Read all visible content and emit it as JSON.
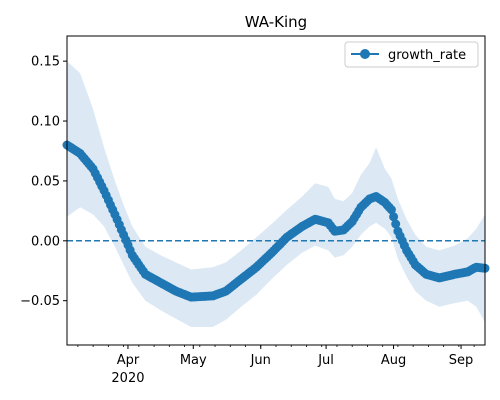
{
  "chart_data": {
    "type": "line",
    "title": "WA-King",
    "xlabel": "",
    "ylabel": "",
    "x_range": [
      "2020-03-04",
      "2020-09-12"
    ],
    "ylim": [
      -0.087,
      0.171
    ],
    "y_ticks": [
      -0.05,
      0.0,
      0.05,
      0.1,
      0.15
    ],
    "y_tick_labels": [
      "−0.05",
      "0.00",
      "0.05",
      "0.10",
      "0.15"
    ],
    "x_major_ticks": [
      {
        "date": "2020-04-01",
        "label": "Apr",
        "sublabel": "2020"
      },
      {
        "date": "2020-05-01",
        "label": "May",
        "sublabel": ""
      },
      {
        "date": "2020-06-01",
        "label": "Jun",
        "sublabel": ""
      },
      {
        "date": "2020-07-01",
        "label": "Jul",
        "sublabel": ""
      },
      {
        "date": "2020-08-01",
        "label": "Aug",
        "sublabel": ""
      },
      {
        "date": "2020-09-01",
        "label": "Sep",
        "sublabel": ""
      }
    ],
    "grid": false,
    "legend": {
      "position": "top-right",
      "entries": [
        "growth_rate"
      ]
    },
    "reference_line": {
      "y": 0.0,
      "style": "dashed",
      "color": "#1f77b4"
    },
    "colors": {
      "line": "#1f77b4",
      "band": "#dce9f5"
    },
    "series": [
      {
        "name": "growth_rate",
        "points": [
          [
            "2020-03-04",
            0.08
          ],
          [
            "2020-03-10",
            0.073
          ],
          [
            "2020-03-16",
            0.06
          ],
          [
            "2020-03-21",
            0.042
          ],
          [
            "2020-03-26",
            0.022
          ],
          [
            "2020-03-30",
            0.005
          ],
          [
            "2020-04-03",
            -0.012
          ],
          [
            "2020-04-09",
            -0.028
          ],
          [
            "2020-04-16",
            -0.035
          ],
          [
            "2020-04-23",
            -0.042
          ],
          [
            "2020-04-30",
            -0.047
          ],
          [
            "2020-05-10",
            -0.046
          ],
          [
            "2020-05-16",
            -0.042
          ],
          [
            "2020-05-23",
            -0.032
          ],
          [
            "2020-05-30",
            -0.022
          ],
          [
            "2020-06-06",
            -0.01
          ],
          [
            "2020-06-13",
            0.003
          ],
          [
            "2020-06-20",
            0.012
          ],
          [
            "2020-06-26",
            0.018
          ],
          [
            "2020-07-02",
            0.015
          ],
          [
            "2020-07-05",
            0.008
          ],
          [
            "2020-07-09",
            0.009
          ],
          [
            "2020-07-13",
            0.016
          ],
          [
            "2020-07-17",
            0.028
          ],
          [
            "2020-07-21",
            0.035
          ],
          [
            "2020-07-24",
            0.037
          ],
          [
            "2020-07-28",
            0.032
          ],
          [
            "2020-07-31",
            0.026
          ],
          [
            "2020-08-03",
            0.008
          ],
          [
            "2020-08-07",
            -0.008
          ],
          [
            "2020-08-11",
            -0.02
          ],
          [
            "2020-08-16",
            -0.028
          ],
          [
            "2020-08-22",
            -0.031
          ],
          [
            "2020-08-29",
            -0.028
          ],
          [
            "2020-09-04",
            -0.026
          ],
          [
            "2020-09-08",
            -0.022
          ],
          [
            "2020-09-12",
            -0.023
          ]
        ],
        "lower": [
          [
            "2020-03-04",
            0.02
          ],
          [
            "2020-03-10",
            0.028
          ],
          [
            "2020-03-16",
            0.022
          ],
          [
            "2020-03-21",
            0.012
          ],
          [
            "2020-03-26",
            -0.005
          ],
          [
            "2020-03-30",
            -0.02
          ],
          [
            "2020-04-03",
            -0.035
          ],
          [
            "2020-04-09",
            -0.05
          ],
          [
            "2020-04-16",
            -0.058
          ],
          [
            "2020-04-23",
            -0.065
          ],
          [
            "2020-04-30",
            -0.072
          ],
          [
            "2020-05-10",
            -0.072
          ],
          [
            "2020-05-16",
            -0.066
          ],
          [
            "2020-05-23",
            -0.055
          ],
          [
            "2020-05-30",
            -0.045
          ],
          [
            "2020-06-06",
            -0.032
          ],
          [
            "2020-06-13",
            -0.02
          ],
          [
            "2020-06-20",
            -0.01
          ],
          [
            "2020-06-26",
            -0.004
          ],
          [
            "2020-07-02",
            -0.008
          ],
          [
            "2020-07-05",
            -0.014
          ],
          [
            "2020-07-09",
            -0.012
          ],
          [
            "2020-07-13",
            -0.005
          ],
          [
            "2020-07-17",
            0.005
          ],
          [
            "2020-07-21",
            0.012
          ],
          [
            "2020-07-24",
            0.015
          ],
          [
            "2020-07-28",
            0.01
          ],
          [
            "2020-07-31",
            0.003
          ],
          [
            "2020-08-03",
            -0.015
          ],
          [
            "2020-08-07",
            -0.03
          ],
          [
            "2020-08-11",
            -0.042
          ],
          [
            "2020-08-16",
            -0.05
          ],
          [
            "2020-08-22",
            -0.055
          ],
          [
            "2020-08-29",
            -0.052
          ],
          [
            "2020-09-04",
            -0.05
          ],
          [
            "2020-09-08",
            -0.055
          ],
          [
            "2020-09-12",
            -0.068
          ]
        ],
        "upper": [
          [
            "2020-03-04",
            0.15
          ],
          [
            "2020-03-10",
            0.14
          ],
          [
            "2020-03-16",
            0.11
          ],
          [
            "2020-03-21",
            0.078
          ],
          [
            "2020-03-26",
            0.05
          ],
          [
            "2020-03-30",
            0.03
          ],
          [
            "2020-04-03",
            0.012
          ],
          [
            "2020-04-09",
            -0.005
          ],
          [
            "2020-04-16",
            -0.012
          ],
          [
            "2020-04-23",
            -0.018
          ],
          [
            "2020-04-30",
            -0.024
          ],
          [
            "2020-05-10",
            -0.022
          ],
          [
            "2020-05-16",
            -0.018
          ],
          [
            "2020-05-23",
            -0.008
          ],
          [
            "2020-05-30",
            0.003
          ],
          [
            "2020-06-06",
            0.014
          ],
          [
            "2020-06-13",
            0.026
          ],
          [
            "2020-06-20",
            0.037
          ],
          [
            "2020-06-26",
            0.048
          ],
          [
            "2020-07-02",
            0.045
          ],
          [
            "2020-07-05",
            0.035
          ],
          [
            "2020-07-09",
            0.033
          ],
          [
            "2020-07-13",
            0.04
          ],
          [
            "2020-07-17",
            0.055
          ],
          [
            "2020-07-21",
            0.065
          ],
          [
            "2020-07-24",
            0.078
          ],
          [
            "2020-07-28",
            0.06
          ],
          [
            "2020-07-31",
            0.052
          ],
          [
            "2020-08-03",
            0.035
          ],
          [
            "2020-08-07",
            0.018
          ],
          [
            "2020-08-11",
            0.005
          ],
          [
            "2020-08-16",
            -0.005
          ],
          [
            "2020-08-22",
            -0.008
          ],
          [
            "2020-08-29",
            -0.004
          ],
          [
            "2020-09-04",
            0.002
          ],
          [
            "2020-09-08",
            0.01
          ],
          [
            "2020-09-12",
            0.022
          ]
        ]
      }
    ]
  }
}
